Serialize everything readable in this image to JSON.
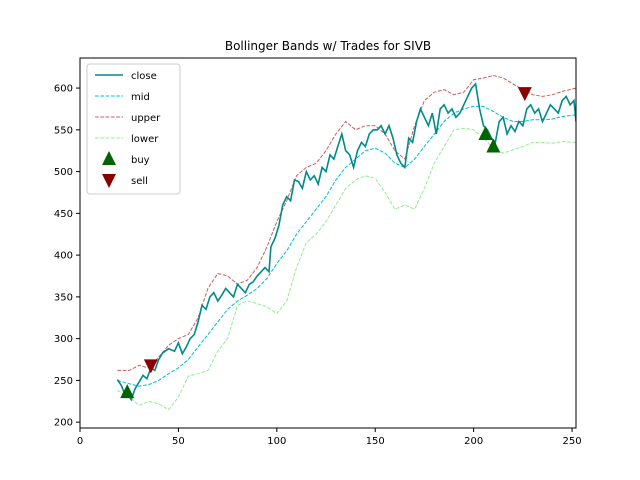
{
  "chart_data": {
    "type": "line",
    "title": "Bollinger Bands w/ Trades for SIVB",
    "xlabel": "",
    "ylabel": "",
    "xlim": [
      0,
      252
    ],
    "ylim": [
      193,
      636
    ],
    "xticks": [
      0,
      50,
      100,
      150,
      200,
      250
    ],
    "yticks": [
      200,
      250,
      300,
      350,
      400,
      450,
      500,
      550,
      600
    ],
    "grid": false,
    "legend_position": "top-left",
    "series": [
      {
        "name": "close",
        "style": "solid",
        "color": "#008b8b",
        "x": [
          19,
          21,
          23,
          24,
          26,
          28,
          30,
          32,
          34,
          36,
          38,
          40,
          42,
          45,
          48,
          50,
          52,
          54,
          56,
          58,
          60,
          62,
          64,
          66,
          68,
          70,
          72,
          74,
          76,
          78,
          80,
          82,
          84,
          86,
          88,
          90,
          92,
          94,
          96,
          97,
          99,
          101,
          103,
          105,
          107,
          109,
          111,
          113,
          115,
          117,
          119,
          121,
          123,
          125,
          127,
          129,
          131,
          133,
          135,
          137,
          139,
          141,
          143,
          145,
          147,
          149,
          151,
          153,
          155,
          157,
          159,
          161,
          163,
          165,
          167,
          169,
          171,
          173,
          175,
          177,
          179,
          181,
          183,
          185,
          187,
          189,
          191,
          193,
          195,
          197,
          199,
          201,
          203,
          205,
          207,
          209,
          211,
          213,
          215,
          217,
          219,
          221,
          223,
          225,
          227,
          229,
          231,
          233,
          235,
          237,
          239,
          241,
          243,
          245,
          247,
          249,
          251,
          252
        ],
        "y": [
          251,
          244,
          232,
          235,
          227,
          240,
          248,
          256,
          252,
          265,
          262,
          275,
          283,
          288,
          285,
          295,
          282,
          290,
          300,
          305,
          320,
          340,
          335,
          350,
          355,
          345,
          352,
          360,
          355,
          350,
          365,
          360,
          355,
          365,
          368,
          375,
          380,
          385,
          380,
          410,
          420,
          435,
          460,
          470,
          465,
          490,
          488,
          480,
          500,
          490,
          495,
          485,
          505,
          500,
          520,
          515,
          530,
          545,
          525,
          520,
          505,
          525,
          535,
          530,
          545,
          550,
          550,
          555,
          545,
          555,
          540,
          520,
          510,
          505,
          540,
          535,
          560,
          575,
          565,
          555,
          570,
          545,
          575,
          580,
          570,
          575,
          565,
          570,
          580,
          590,
          600,
          605,
          575,
          555,
          550,
          540,
          535,
          560,
          565,
          545,
          555,
          548,
          560,
          555,
          575,
          580,
          570,
          575,
          560,
          570,
          580,
          575,
          570,
          585,
          590,
          580,
          585,
          560
        ]
      },
      {
        "name": "mid",
        "style": "dashed",
        "color": "#00bcd4",
        "x": [
          19,
          25,
          30,
          35,
          40,
          45,
          50,
          55,
          60,
          65,
          70,
          75,
          80,
          85,
          90,
          95,
          100,
          105,
          110,
          115,
          120,
          125,
          130,
          135,
          140,
          145,
          150,
          155,
          160,
          165,
          170,
          175,
          180,
          185,
          190,
          195,
          200,
          205,
          210,
          215,
          220,
          225,
          230,
          235,
          240,
          245,
          252
        ],
        "y": [
          250,
          246,
          243,
          245,
          250,
          258,
          265,
          275,
          290,
          305,
          320,
          335,
          345,
          352,
          360,
          372,
          390,
          405,
          425,
          440,
          455,
          470,
          490,
          505,
          515,
          525,
          528,
          522,
          510,
          505,
          515,
          530,
          545,
          560,
          570,
          575,
          578,
          578,
          572,
          565,
          560,
          560,
          562,
          562,
          563,
          566,
          568
        ]
      },
      {
        "name": "upper",
        "style": "dashed",
        "color": "#cd5c5c",
        "x": [
          19,
          25,
          30,
          35,
          40,
          45,
          50,
          55,
          60,
          65,
          70,
          75,
          80,
          85,
          90,
          95,
          100,
          105,
          110,
          115,
          120,
          125,
          130,
          135,
          140,
          145,
          150,
          155,
          160,
          165,
          170,
          175,
          180,
          185,
          190,
          195,
          200,
          205,
          210,
          215,
          220,
          225,
          230,
          235,
          240,
          245,
          252
        ],
        "y": [
          262,
          262,
          268,
          265,
          278,
          292,
          300,
          305,
          325,
          360,
          378,
          375,
          365,
          370,
          385,
          410,
          440,
          465,
          495,
          505,
          510,
          525,
          545,
          560,
          550,
          555,
          555,
          545,
          525,
          515,
          555,
          585,
          595,
          598,
          592,
          595,
          610,
          612,
          615,
          612,
          605,
          598,
          592,
          590,
          592,
          596,
          600
        ]
      },
      {
        "name": "lower",
        "style": "dashed",
        "color": "#90ee90",
        "x": [
          19,
          25,
          30,
          35,
          40,
          45,
          50,
          55,
          60,
          65,
          70,
          75,
          80,
          85,
          90,
          95,
          100,
          105,
          110,
          115,
          120,
          125,
          130,
          135,
          140,
          145,
          150,
          155,
          160,
          165,
          170,
          175,
          180,
          185,
          190,
          195,
          200,
          205,
          210,
          215,
          220,
          225,
          230,
          235,
          240,
          245,
          252
        ],
        "y": [
          238,
          230,
          220,
          225,
          222,
          215,
          230,
          255,
          258,
          262,
          285,
          300,
          340,
          345,
          342,
          338,
          330,
          345,
          385,
          415,
          425,
          440,
          460,
          480,
          490,
          495,
          492,
          475,
          455,
          460,
          455,
          480,
          510,
          530,
          550,
          552,
          550,
          540,
          528,
          522,
          526,
          530,
          535,
          535,
          534,
          536,
          535
        ]
      }
    ],
    "markers": [
      {
        "name": "buy",
        "shape": "triangle-up",
        "color": "#006400",
        "points": [
          [
            24,
            236
          ],
          [
            206,
            545
          ],
          [
            210,
            530
          ]
        ]
      },
      {
        "name": "sell",
        "shape": "triangle-down",
        "color": "#8b0000",
        "points": [
          [
            36,
            268
          ],
          [
            226,
            594
          ]
        ]
      }
    ]
  }
}
